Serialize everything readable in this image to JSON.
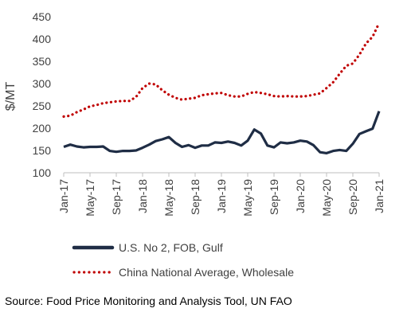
{
  "chart_data": {
    "type": "line",
    "title": "",
    "ylabel": "$/MT",
    "xlabel": "",
    "ylim": [
      100,
      450
    ],
    "yticks": [
      100,
      150,
      200,
      250,
      300,
      350,
      400,
      450
    ],
    "grid": false,
    "legend_position": "bottom",
    "x": [
      "Jan-17",
      "Feb-17",
      "Mar-17",
      "Apr-17",
      "May-17",
      "Jun-17",
      "Jul-17",
      "Aug-17",
      "Sep-17",
      "Oct-17",
      "Nov-17",
      "Dec-17",
      "Jan-18",
      "Feb-18",
      "Mar-18",
      "Apr-18",
      "May-18",
      "Jun-18",
      "Jul-18",
      "Aug-18",
      "Sep-18",
      "Oct-18",
      "Nov-18",
      "Dec-18",
      "Jan-19",
      "Feb-19",
      "Mar-19",
      "Apr-19",
      "May-19",
      "Jun-19",
      "Jul-19",
      "Aug-19",
      "Sep-19",
      "Oct-19",
      "Nov-19",
      "Dec-19",
      "Jan-20",
      "Feb-20",
      "Mar-20",
      "Apr-20",
      "May-20",
      "Jun-20",
      "Jul-20",
      "Aug-20",
      "Sep-20",
      "Oct-20",
      "Nov-20",
      "Dec-20",
      "Jan-21"
    ],
    "xtick_labels": [
      "Jan-17",
      "May-17",
      "Sep-17",
      "Jan-18",
      "May-18",
      "Sep-18",
      "Jan-19",
      "May-19",
      "Sep-19",
      "Jan-20",
      "May-20",
      "Sep-20",
      "Jan-21"
    ],
    "series": [
      {
        "name": "U.S. No 2, FOB, Gulf",
        "color": "#1f2d45",
        "style": "solid",
        "values": [
          158,
          163,
          159,
          157,
          158,
          158,
          159,
          149,
          147,
          149,
          149,
          150,
          156,
          163,
          171,
          175,
          180,
          167,
          158,
          162,
          156,
          161,
          161,
          168,
          167,
          170,
          167,
          161,
          172,
          197,
          188,
          161,
          157,
          168,
          166,
          168,
          172,
          170,
          162,
          146,
          144,
          149,
          151,
          149,
          165,
          187,
          193,
          199,
          238
        ]
      },
      {
        "name": "China National Average, Wholesale",
        "color": "#c00000",
        "style": "dotted",
        "values": [
          226,
          228,
          236,
          242,
          249,
          252,
          256,
          258,
          260,
          261,
          261,
          270,
          290,
          300,
          298,
          285,
          275,
          268,
          264,
          266,
          268,
          274,
          276,
          278,
          279,
          274,
          271,
          271,
          277,
          281,
          279,
          276,
          272,
          271,
          272,
          271,
          271,
          272,
          275,
          278,
          290,
          303,
          322,
          340,
          345,
          365,
          390,
          405,
          436
        ]
      }
    ]
  },
  "source": "Source: Food Price Monitoring and Analysis Tool, UN FAO"
}
